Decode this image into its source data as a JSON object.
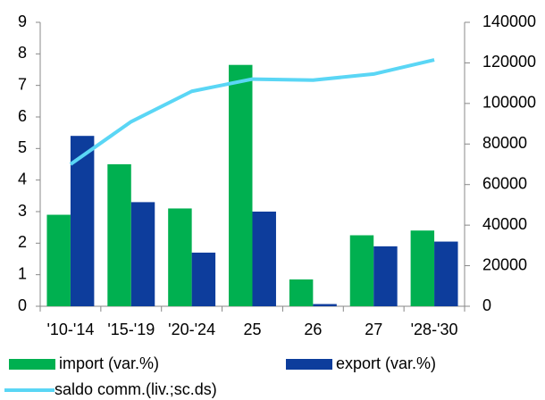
{
  "chart_data": {
    "type": "bar_line",
    "categories": [
      "'10-'14",
      "'15-'19",
      "'20-'24",
      "25",
      "26",
      "27",
      "'28-'30"
    ],
    "series": [
      {
        "name": "import (var.%)",
        "color": "#00b050",
        "type": "bar",
        "values": [
          2.9,
          4.5,
          3.1,
          7.65,
          0.85,
          2.25,
          2.4
        ]
      },
      {
        "name": "export (var.%)",
        "color": "#0d3d9c",
        "type": "bar",
        "values": [
          5.4,
          3.3,
          1.7,
          3.0,
          0.07,
          1.9,
          2.05
        ]
      },
      {
        "name": "saldo comm.(liv.;sc.ds)",
        "color": "#5ad6f5",
        "type": "line",
        "axis": "y2",
        "values": [
          70000,
          91000,
          106000,
          112000,
          111500,
          114500,
          121500
        ]
      }
    ],
    "ylim": [
      0,
      9
    ],
    "yticks": [
      0,
      1,
      2,
      3,
      4,
      5,
      6,
      7,
      8,
      9
    ],
    "y2lim": [
      0,
      140000
    ],
    "y2ticks": [
      0,
      20000,
      40000,
      60000,
      80000,
      100000,
      120000,
      140000
    ],
    "grid": false,
    "legend": "bottom"
  }
}
